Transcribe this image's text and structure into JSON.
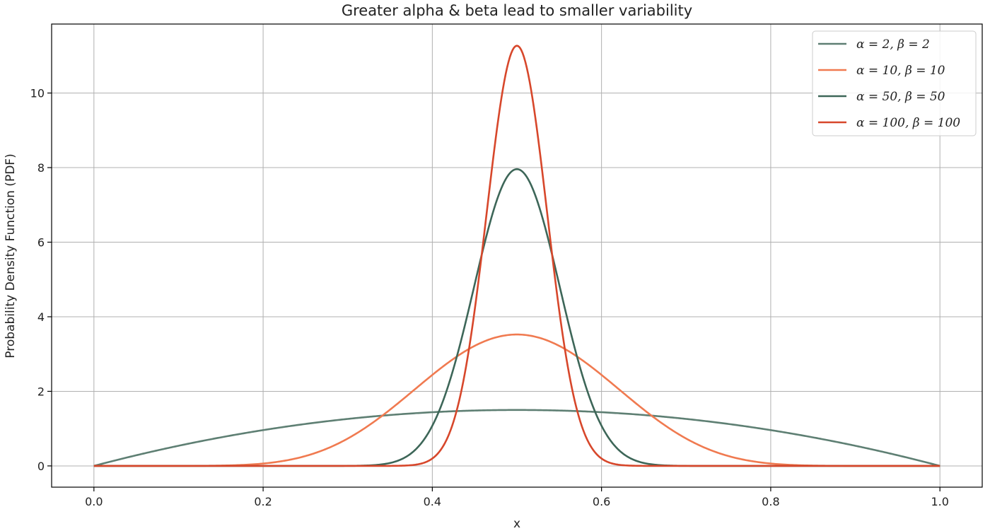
{
  "chart_data": {
    "type": "line",
    "title": "Greater alpha & beta lead to smaller variability",
    "xlabel": "x",
    "ylabel": "Probability Density Function (PDF)",
    "xlim": [
      -0.05,
      1.05
    ],
    "ylim": [
      -0.57,
      11.85
    ],
    "x_ticks": [
      0.0,
      0.2,
      0.4,
      0.6,
      0.8,
      1.0
    ],
    "x_tick_labels": [
      "0.0",
      "0.2",
      "0.4",
      "0.6",
      "0.8",
      "1.0"
    ],
    "y_ticks": [
      0,
      2,
      4,
      6,
      8,
      10
    ],
    "y_tick_labels": [
      "0",
      "2",
      "4",
      "6",
      "8",
      "10"
    ],
    "grid": true,
    "legend_position": "top-right",
    "series": [
      {
        "name": "α = 2, β = 2",
        "color": "#5e7f73",
        "alpha": 2,
        "beta": 2,
        "x": [
          0.0,
          0.05,
          0.1,
          0.15,
          0.2,
          0.25,
          0.3,
          0.35,
          0.4,
          0.45,
          0.5,
          0.55,
          0.6,
          0.65,
          0.7,
          0.75,
          0.8,
          0.85,
          0.9,
          0.95,
          1.0
        ],
        "y": [
          0.0,
          0.285,
          0.54,
          0.765,
          0.96,
          1.125,
          1.26,
          1.365,
          1.44,
          1.485,
          1.5,
          1.485,
          1.44,
          1.365,
          1.26,
          1.125,
          0.96,
          0.765,
          0.54,
          0.285,
          0.0
        ]
      },
      {
        "name": "α = 10, β = 10",
        "color": "#f07a50",
        "alpha": 10,
        "beta": 10,
        "x": [
          0.0,
          0.15,
          0.2,
          0.25,
          0.3,
          0.35,
          0.4,
          0.45,
          0.5,
          0.55,
          0.6,
          0.65,
          0.7,
          0.75,
          0.8,
          0.85,
          1.0
        ],
        "y": [
          0.0,
          0.013,
          0.065,
          0.22,
          0.57,
          1.26,
          2.19,
          3.18,
          3.52,
          3.18,
          2.19,
          1.26,
          0.57,
          0.22,
          0.065,
          0.013,
          0.0
        ]
      },
      {
        "name": "α = 50, β = 50",
        "color": "#3d6658",
        "alpha": 50,
        "beta": 50,
        "x": [
          0.0,
          0.3,
          0.34,
          0.36,
          0.38,
          0.4,
          0.42,
          0.44,
          0.46,
          0.48,
          0.5,
          0.52,
          0.54,
          0.56,
          0.58,
          0.6,
          0.62,
          0.64,
          0.66,
          0.7,
          1.0
        ],
        "y": [
          0.0,
          0.003,
          0.044,
          0.14,
          0.43,
          1.06,
          2.19,
          3.94,
          5.97,
          7.49,
          7.96,
          7.49,
          5.97,
          3.94,
          2.19,
          1.06,
          0.43,
          0.14,
          0.044,
          0.003,
          0.0
        ]
      },
      {
        "name": "α = 100, β = 100",
        "color": "#d7472b",
        "alpha": 100,
        "beta": 100,
        "x": [
          0.0,
          0.36,
          0.38,
          0.4,
          0.42,
          0.44,
          0.46,
          0.48,
          0.5,
          0.52,
          0.54,
          0.56,
          0.58,
          0.6,
          0.62,
          0.64,
          1.0
        ],
        "y": [
          0.0,
          0.002,
          0.016,
          0.15,
          0.91,
          3.05,
          6.99,
          10.34,
          11.26,
          10.34,
          6.99,
          3.05,
          0.91,
          0.15,
          0.016,
          0.002,
          0.0
        ]
      }
    ]
  }
}
